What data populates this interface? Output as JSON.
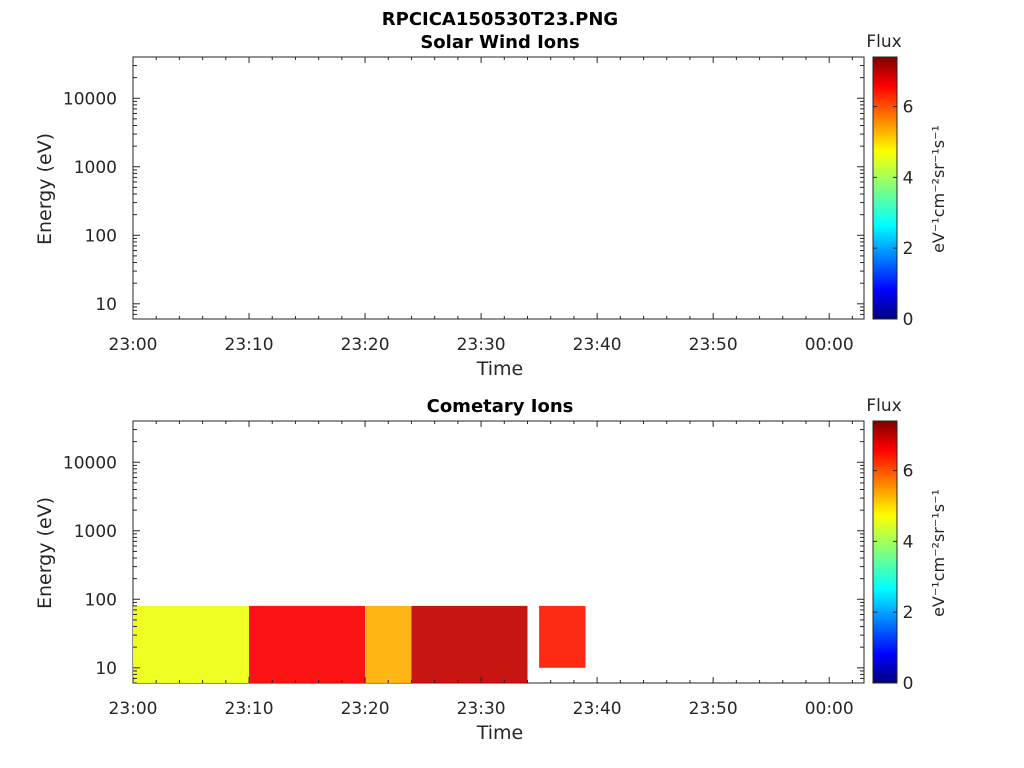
{
  "figure": {
    "filename": "RPCICA150530T23.PNG"
  },
  "colorbar": {
    "title": "Flux",
    "unit_label": "eV⁻¹cm⁻²sr⁻¹s⁻¹",
    "ticks": [
      "0",
      "2",
      "4",
      "6"
    ],
    "range": [
      0,
      7.4
    ],
    "colormap": "jet"
  },
  "chart_data": [
    {
      "type": "heatmap",
      "title": "Solar Wind Ions",
      "xlabel": "Time",
      "ylabel": "Energy (eV)",
      "x_ticks": [
        "23:00",
        "23:10",
        "23:20",
        "23:30",
        "23:40",
        "23:50",
        "00:00"
      ],
      "y_ticks": [
        "10",
        "100",
        "1000",
        "10000"
      ],
      "y_scale": "log",
      "xlim": [
        "23:00",
        "00:03"
      ],
      "ylim": [
        6,
        40000
      ],
      "blocks": []
    },
    {
      "type": "heatmap",
      "title": "Cometary Ions",
      "xlabel": "Time",
      "ylabel": "Energy (eV)",
      "x_ticks": [
        "23:00",
        "23:10",
        "23:20",
        "23:30",
        "23:40",
        "23:50",
        "00:00"
      ],
      "y_ticks": [
        "10",
        "100",
        "1000",
        "10000"
      ],
      "y_scale": "log",
      "xlim": [
        "23:00",
        "00:03"
      ],
      "ylim": [
        6,
        40000
      ],
      "blocks": [
        {
          "t_start": "23:00",
          "t_end": "23:10",
          "e_min": 6,
          "e_max": 80,
          "flux": 4.5
        },
        {
          "t_start": "23:10",
          "t_end": "23:20",
          "e_min": 6,
          "e_max": 80,
          "flux": 6.5
        },
        {
          "t_start": "23:20",
          "t_end": "23:24",
          "e_min": 6,
          "e_max": 80,
          "flux": 5.2
        },
        {
          "t_start": "23:24",
          "t_end": "23:34",
          "e_min": 6,
          "e_max": 80,
          "flux": 6.9
        },
        {
          "t_start": "23:35",
          "t_end": "23:39",
          "e_min": 10,
          "e_max": 80,
          "flux": 6.3
        }
      ]
    }
  ]
}
